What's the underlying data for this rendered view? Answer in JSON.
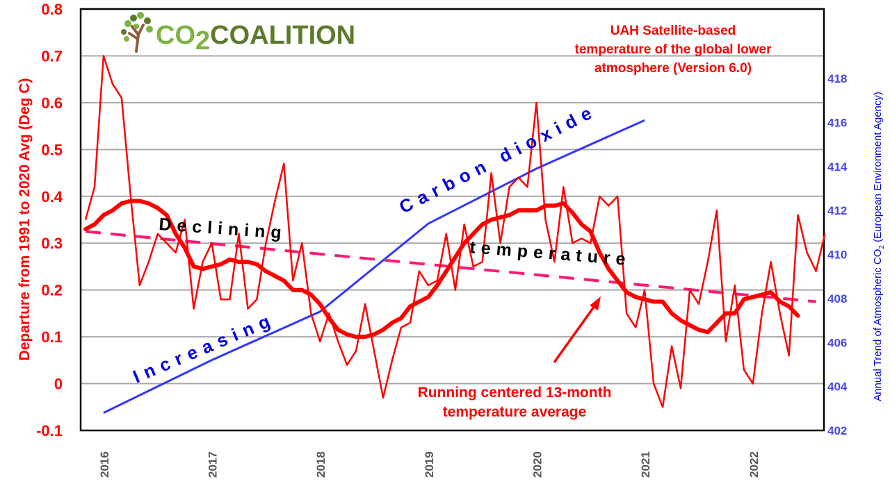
{
  "chart_data": {
    "type": "line",
    "title": "UAH Satellite-based temperature of the global lower atmosphere (Version 6.0)",
    "title_lines": [
      "UAH Satellite-based",
      "temperature of the global lower",
      "atmosphere (Version 6.0)"
    ],
    "ylabel": "Departure from 1991 to 2020 Avg (Deg C)",
    "ylabel_right": "Annual Trend of Atmospheric CO2 (European Environment Agency)",
    "ylabel_right_parts": [
      "Annual Trend of Atmospheric CO",
      "2",
      " (European Environment Agency)"
    ],
    "ylim": [
      -0.1,
      0.8
    ],
    "ylim_right": [
      402,
      418
    ],
    "yticks": [
      "0.8",
      "0.7",
      "0.6",
      "0.5",
      "0.4",
      "0.3",
      "0.2",
      "0.1",
      "0",
      "-0.1"
    ],
    "yticks_right": [
      "418",
      "416",
      "414",
      "412",
      "410",
      "408",
      "406",
      "404",
      "402"
    ],
    "xticks": [
      "2016",
      "2017",
      "2018",
      "2019",
      "2020",
      "2021",
      "2022"
    ],
    "grid": true,
    "months": [
      "2015-12",
      "2016-01",
      "2016-02",
      "2016-03",
      "2016-04",
      "2016-05",
      "2016-06",
      "2016-07",
      "2016-08",
      "2016-09",
      "2016-10",
      "2016-11",
      "2016-12",
      "2017-01",
      "2017-02",
      "2017-03",
      "2017-04",
      "2017-05",
      "2017-06",
      "2017-07",
      "2017-08",
      "2017-09",
      "2017-10",
      "2017-11",
      "2017-12",
      "2018-01",
      "2018-02",
      "2018-03",
      "2018-04",
      "2018-05",
      "2018-06",
      "2018-07",
      "2018-08",
      "2018-09",
      "2018-10",
      "2018-11",
      "2018-12",
      "2019-01",
      "2019-02",
      "2019-03",
      "2019-04",
      "2019-05",
      "2019-06",
      "2019-07",
      "2019-08",
      "2019-09",
      "2019-10",
      "2019-11",
      "2019-12",
      "2020-01",
      "2020-02",
      "2020-03",
      "2020-04",
      "2020-05",
      "2020-06",
      "2020-07",
      "2020-08",
      "2020-09",
      "2020-10",
      "2020-11",
      "2020-12",
      "2021-01",
      "2021-02",
      "2021-03",
      "2021-04",
      "2021-05",
      "2021-06",
      "2021-07",
      "2021-08",
      "2021-09",
      "2021-10",
      "2021-11",
      "2021-12",
      "2022-01",
      "2022-02",
      "2022-03",
      "2022-04",
      "2022-05",
      "2022-06",
      "2022-07",
      "2022-08",
      "2022-09",
      "2022-10"
    ],
    "series": [
      {
        "key": "monthly",
        "color": "#ff0000",
        "values": [
          0.35,
          0.42,
          0.7,
          0.64,
          0.61,
          0.4,
          0.21,
          0.26,
          0.32,
          0.3,
          0.28,
          0.35,
          0.16,
          0.26,
          0.3,
          0.18,
          0.18,
          0.32,
          0.16,
          0.18,
          0.3,
          0.39,
          0.47,
          0.22,
          0.3,
          0.15,
          0.09,
          0.15,
          0.09,
          0.04,
          0.07,
          0.17,
          0.07,
          -0.03,
          0.05,
          0.12,
          0.13,
          0.24,
          0.21,
          0.22,
          0.32,
          0.2,
          0.34,
          0.25,
          0.26,
          0.45,
          0.3,
          0.42,
          0.44,
          0.42,
          0.6,
          0.35,
          0.26,
          0.42,
          0.3,
          0.31,
          0.3,
          0.4,
          0.38,
          0.4,
          0.15,
          0.12,
          0.2,
          0.0,
          -0.05,
          0.08,
          -0.01,
          0.2,
          0.17,
          0.26,
          0.37,
          0.09,
          0.21,
          0.03,
          0.0,
          0.15,
          0.26,
          0.15,
          0.06,
          0.36,
          0.28,
          0.24,
          0.32
        ]
      },
      {
        "key": "running_13_month",
        "name": "Running centered 13-month temperature average",
        "color": "#ff0000",
        "values": [
          0.33,
          0.34,
          0.36,
          0.37,
          0.385,
          0.39,
          0.39,
          0.385,
          0.375,
          0.36,
          0.32,
          0.29,
          0.25,
          0.245,
          0.25,
          0.255,
          0.265,
          0.26,
          0.26,
          0.255,
          0.24,
          0.23,
          0.22,
          0.2,
          0.2,
          0.19,
          0.17,
          0.14,
          0.115,
          0.105,
          0.1,
          0.1,
          0.105,
          0.115,
          0.13,
          0.14,
          0.165,
          0.175,
          0.185,
          0.21,
          0.24,
          0.27,
          0.3,
          0.32,
          0.34,
          0.35,
          0.355,
          0.36,
          0.37,
          0.37,
          0.37,
          0.38,
          0.38,
          0.385,
          0.365,
          0.34,
          0.325,
          0.28,
          0.245,
          0.22,
          0.195,
          0.185,
          0.18,
          0.175,
          0.175,
          0.15,
          0.135,
          0.125,
          0.115,
          0.11,
          0.13,
          0.15,
          0.15,
          0.18,
          0.185,
          0.19,
          0.195,
          0.175,
          0.165,
          0.145
        ]
      },
      {
        "key": "trend",
        "color": "#ff1a75",
        "style": "dashed",
        "points": [
          [
            "2015-12",
            0.325
          ],
          [
            "2022-09",
            0.175
          ]
        ]
      },
      {
        "key": "co2",
        "axis": "right",
        "color": "#3535ff",
        "years": [
          "2016",
          "2017",
          "2018",
          "2019",
          "2020",
          "2021"
        ],
        "values": [
          402.8,
          405.2,
          407.4,
          411.4,
          413.9,
          416.1
        ]
      }
    ],
    "annotations": {
      "declining": "Declining",
      "temperature": "temperature",
      "increasing": "Increasing",
      "carbon_dioxide": "Carbon dioxide",
      "running_lines": [
        "Running centered 13-month",
        "temperature average"
      ]
    }
  },
  "logo": {
    "text_a": "CO",
    "sub": "2",
    "text_b": "COALITION",
    "light_green": "#7cb342",
    "dark_green": "#5b7a2b",
    "trunk": "#8b5e3c"
  }
}
